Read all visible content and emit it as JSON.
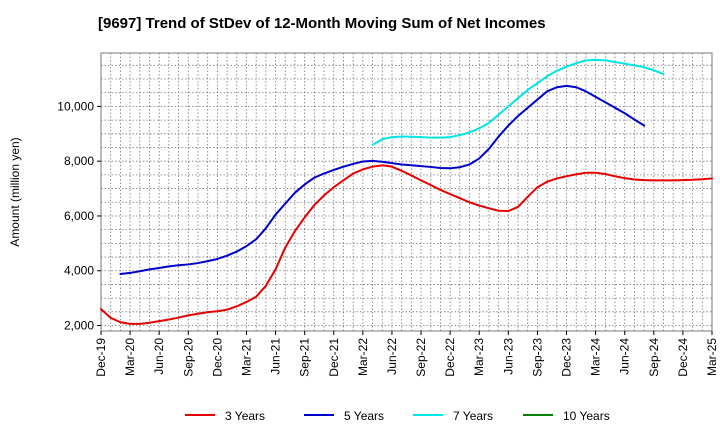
{
  "chart_data": {
    "type": "line",
    "title": "[9697]  Trend of StDev of 12-Month Moving Sum of Net Incomes",
    "xlabel": "",
    "ylabel": "Amount (million yen)",
    "x_ticks": [
      "Dec-19",
      "Mar-20",
      "Jun-20",
      "Sep-20",
      "Dec-20",
      "Mar-21",
      "Jun-21",
      "Sep-21",
      "Dec-21",
      "Mar-22",
      "Jun-22",
      "Sep-22",
      "Dec-22",
      "Mar-23",
      "Jun-23",
      "Sep-23",
      "Dec-23",
      "Mar-24",
      "Jun-24",
      "Sep-24",
      "Dec-24",
      "Mar-25"
    ],
    "y_ticks": [
      2000,
      4000,
      6000,
      8000,
      10000
    ],
    "y_tick_labels": [
      "2,000",
      "4,000",
      "6,000",
      "8,000",
      "10,000"
    ],
    "ylim": [
      1800,
      11950
    ],
    "grid": true,
    "legend_position": "bottom",
    "series": [
      {
        "name": "3 Years",
        "color": "#e60000",
        "start_index": 0,
        "values": [
          2600,
          2280,
          2120,
          2060,
          2060,
          2100,
          2160,
          2220,
          2290,
          2370,
          2430,
          2490,
          2520,
          2580,
          2700,
          2860,
          3050,
          3450,
          4050,
          4850,
          5450,
          5950,
          6400,
          6750,
          7050,
          7300,
          7550,
          7700,
          7800,
          7850,
          7800,
          7650,
          7480,
          7300,
          7130,
          6950,
          6800,
          6650,
          6500,
          6380,
          6280,
          6190,
          6180,
          6330,
          6700,
          7050,
          7250,
          7370,
          7450,
          7520,
          7580,
          7580,
          7530,
          7450,
          7380,
          7330,
          7310,
          7300,
          7300,
          7300,
          7310,
          7320,
          7340,
          7370
        ]
      },
      {
        "name": "5 Years",
        "color": "#0000cc",
        "start_index": 2,
        "values": [
          3880,
          3920,
          3980,
          4050,
          4100,
          4160,
          4200,
          4230,
          4280,
          4350,
          4430,
          4550,
          4700,
          4900,
          5150,
          5550,
          6050,
          6450,
          6850,
          7150,
          7400,
          7550,
          7680,
          7800,
          7900,
          7990,
          8010,
          7980,
          7930,
          7880,
          7850,
          7820,
          7790,
          7750,
          7740,
          7780,
          7880,
          8100,
          8450,
          8900,
          9300,
          9650,
          9950,
          10250,
          10550,
          10700,
          10750,
          10700,
          10550,
          10350,
          10150,
          9950,
          9750,
          9520,
          9300
        ]
      },
      {
        "name": "7 Years",
        "color": "#00e5e5",
        "start_index": 28,
        "values": [
          8600,
          8800,
          8880,
          8900,
          8890,
          8880,
          8860,
          8860,
          8880,
          8950,
          9050,
          9200,
          9400,
          9700,
          10000,
          10300,
          10600,
          10850,
          11100,
          11300,
          11450,
          11580,
          11680,
          11700,
          11680,
          11620,
          11560,
          11500,
          11430,
          11320,
          11180
        ]
      },
      {
        "name": "10 Years",
        "color": "#008000",
        "start_index": 0,
        "values": []
      }
    ]
  }
}
